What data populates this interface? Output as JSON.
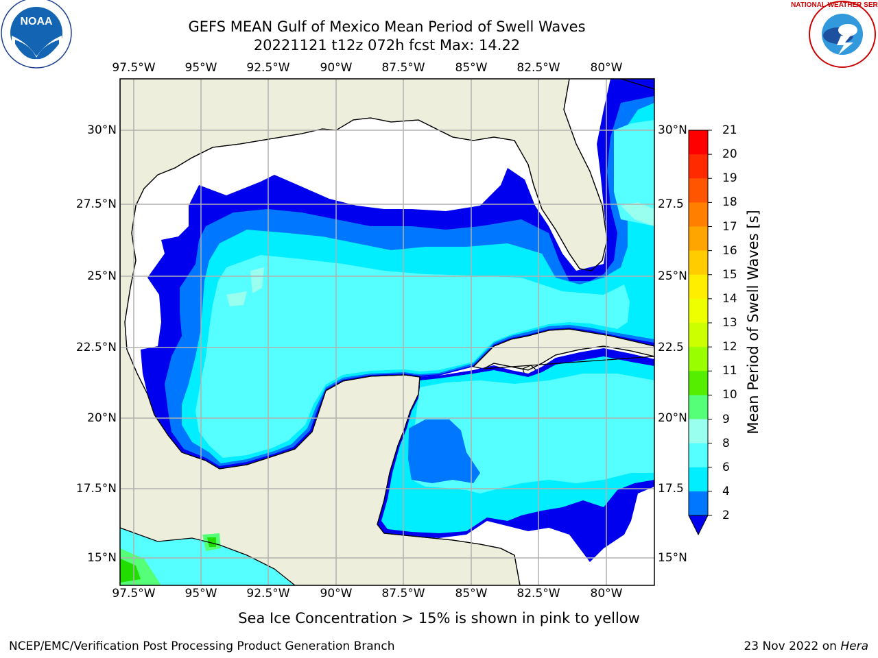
{
  "title_line1": "GEFS MEAN Gulf of Mexico Mean Period of Swell Waves",
  "title_line2": "20221121 t12z 072h fcst   Max: 14.22",
  "lon_ticks": [
    "97.5°W",
    "95°W",
    "92.5°W",
    "90°W",
    "87.5°W",
    "85°W",
    "82.5°W",
    "80°W"
  ],
  "lat_ticks_left": [
    "30°N",
    "27.5°N",
    "25°N",
    "22.5°N",
    "20°N",
    "17.5°N",
    "15°N"
  ],
  "lat_ticks_right": [
    "30°N",
    "27.5",
    "25°N",
    "22.5",
    "20°N",
    "17.5",
    "15°N"
  ],
  "colorbar": {
    "label": "Mean Period of Swell Waves [s]",
    "ticks": [
      "21",
      "20",
      "19",
      "18",
      "17",
      "16",
      "15",
      "14",
      "13",
      "12",
      "11",
      "10",
      "9",
      "8",
      "6",
      "4",
      "2"
    ],
    "colors": [
      "#ff0000",
      "#ff2a00",
      "#ff5500",
      "#ff7f00",
      "#ffa500",
      "#ffcc00",
      "#ffee00",
      "#eeff00",
      "#ccff00",
      "#99ff00",
      "#55ee00",
      "#22dd00",
      "#00cc00",
      "#55ff77",
      "#99ffee",
      "#55ffff",
      "#00eeff",
      "#0077ff",
      "#0000ee"
    ],
    "extend_color": "#0000ee"
  },
  "map_colors": {
    "land": "#eeeedd",
    "lt2": "#0000ee",
    "p2_4": "#0077ff",
    "p4_6": "#00eeff",
    "p6_8": "#55ffff",
    "p8_9": "#99ffee",
    "p9_10": "#55ff77",
    "p10_11": "#22dd00"
  },
  "ice_note": "Sea Ice Concentration > 15% is shown in pink to yellow",
  "footer_left": "NCEP/EMC/Verification Post Processing Product Generation Branch",
  "footer_date": "23 Nov 2022 on",
  "footer_machine": "Hera",
  "logos": {
    "noaa_text": "NOAA",
    "noaa_ring": "NATIONAL OCEANIC AND ATMOSPHERIC ADMINISTRATION · U.S. DEPARTMENT OF COMMERCE",
    "nws_ring": "NATIONAL WEATHER SERVICE"
  }
}
